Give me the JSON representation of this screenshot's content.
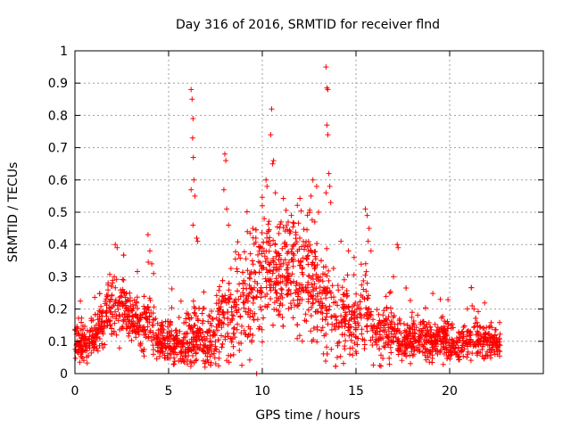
{
  "chart_data": {
    "type": "scatter",
    "title": "Day 316 of 2016, SRMTID for receiver flnd",
    "xlabel": "GPS time / hours",
    "ylabel": "SRMTID / TECUs",
    "xlim": [
      0,
      25
    ],
    "ylim": [
      0,
      1
    ],
    "xticks": [
      0,
      5,
      10,
      15,
      20
    ],
    "xtick_labels": [
      "0",
      "5",
      "10",
      "15",
      "20"
    ],
    "yticks": [
      0,
      0.1,
      0.2,
      0.3,
      0.4,
      0.5,
      0.6,
      0.7,
      0.8,
      0.9,
      1
    ],
    "ytick_labels": [
      "0",
      "0.1",
      "0.2",
      "0.3",
      "0.4",
      "0.5",
      "0.6",
      "0.7",
      "0.8",
      "0.9",
      "1"
    ],
    "grid": true,
    "marker": "+",
    "series_color": "#ff0000",
    "x_data_end": 22.7,
    "baseline_profile": [
      [
        0.0,
        0.11,
        0.03
      ],
      [
        0.5,
        0.09,
        0.03
      ],
      [
        1.0,
        0.11,
        0.03
      ],
      [
        1.5,
        0.16,
        0.04
      ],
      [
        2.0,
        0.2,
        0.05
      ],
      [
        2.5,
        0.21,
        0.05
      ],
      [
        3.0,
        0.18,
        0.04
      ],
      [
        3.5,
        0.15,
        0.04
      ],
      [
        4.0,
        0.16,
        0.05
      ],
      [
        4.5,
        0.1,
        0.03
      ],
      [
        5.0,
        0.1,
        0.03
      ],
      [
        5.5,
        0.09,
        0.03
      ],
      [
        6.0,
        0.1,
        0.04
      ],
      [
        6.5,
        0.12,
        0.05
      ],
      [
        7.0,
        0.09,
        0.04
      ],
      [
        7.5,
        0.12,
        0.05
      ],
      [
        8.0,
        0.17,
        0.07
      ],
      [
        8.5,
        0.18,
        0.08
      ],
      [
        9.0,
        0.2,
        0.08
      ],
      [
        9.5,
        0.27,
        0.09
      ],
      [
        10.0,
        0.31,
        0.1
      ],
      [
        10.5,
        0.33,
        0.08
      ],
      [
        11.0,
        0.3,
        0.09
      ],
      [
        11.5,
        0.33,
        0.08
      ],
      [
        12.0,
        0.3,
        0.09
      ],
      [
        12.5,
        0.3,
        0.1
      ],
      [
        13.0,
        0.24,
        0.07
      ],
      [
        13.5,
        0.24,
        0.08
      ],
      [
        14.0,
        0.18,
        0.06
      ],
      [
        14.5,
        0.17,
        0.05
      ],
      [
        15.0,
        0.16,
        0.05
      ],
      [
        15.5,
        0.2,
        0.07
      ],
      [
        16.0,
        0.11,
        0.04
      ],
      [
        16.5,
        0.13,
        0.05
      ],
      [
        17.0,
        0.12,
        0.04
      ],
      [
        17.5,
        0.1,
        0.03
      ],
      [
        18.0,
        0.11,
        0.03
      ],
      [
        18.5,
        0.11,
        0.03
      ],
      [
        19.0,
        0.1,
        0.03
      ],
      [
        19.5,
        0.11,
        0.03
      ],
      [
        20.0,
        0.1,
        0.03
      ],
      [
        20.5,
        0.09,
        0.03
      ],
      [
        21.0,
        0.1,
        0.03
      ],
      [
        21.5,
        0.11,
        0.03
      ],
      [
        22.0,
        0.1,
        0.03
      ],
      [
        22.7,
        0.09,
        0.02
      ]
    ],
    "highlights": [
      [
        13.4,
        0.95
      ],
      [
        13.45,
        0.885
      ],
      [
        13.5,
        0.88
      ],
      [
        13.45,
        0.77
      ],
      [
        13.5,
        0.74
      ],
      [
        13.55,
        0.62
      ],
      [
        13.6,
        0.58
      ],
      [
        13.4,
        0.56
      ],
      [
        13.65,
        0.53
      ],
      [
        6.2,
        0.88
      ],
      [
        6.25,
        0.85
      ],
      [
        6.3,
        0.79
      ],
      [
        6.28,
        0.73
      ],
      [
        6.32,
        0.67
      ],
      [
        6.35,
        0.6
      ],
      [
        6.2,
        0.57
      ],
      [
        6.4,
        0.55
      ],
      [
        6.3,
        0.46
      ],
      [
        6.5,
        0.42
      ],
      [
        6.55,
        0.41
      ],
      [
        10.5,
        0.82
      ],
      [
        10.45,
        0.74
      ],
      [
        10.6,
        0.66
      ],
      [
        10.55,
        0.65
      ],
      [
        10.7,
        0.56
      ],
      [
        10.2,
        0.6
      ],
      [
        10.25,
        0.58
      ],
      [
        10.0,
        0.52
      ],
      [
        10.1,
        0.48
      ],
      [
        8.0,
        0.68
      ],
      [
        8.05,
        0.66
      ],
      [
        7.95,
        0.57
      ],
      [
        8.1,
        0.51
      ],
      [
        8.2,
        0.46
      ],
      [
        12.7,
        0.6
      ],
      [
        12.9,
        0.58
      ],
      [
        12.6,
        0.55
      ],
      [
        13.0,
        0.5
      ],
      [
        12.8,
        0.47
      ],
      [
        11.8,
        0.43
      ],
      [
        12.0,
        0.42
      ],
      [
        15.5,
        0.51
      ],
      [
        15.6,
        0.49
      ],
      [
        15.7,
        0.45
      ],
      [
        15.65,
        0.41
      ],
      [
        15.8,
        0.38
      ],
      [
        17.2,
        0.4
      ],
      [
        17.25,
        0.39
      ],
      [
        17.0,
        0.3
      ],
      [
        3.9,
        0.43
      ],
      [
        4.0,
        0.38
      ],
      [
        4.1,
        0.34
      ],
      [
        4.2,
        0.31
      ],
      [
        2.15,
        0.4
      ],
      [
        2.25,
        0.39
      ],
      [
        2.1,
        0.3
      ],
      [
        2.6,
        0.29
      ],
      [
        9.2,
        0.44
      ],
      [
        9.5,
        0.45
      ],
      [
        11.0,
        0.47
      ],
      [
        11.5,
        0.44
      ],
      [
        14.2,
        0.41
      ],
      [
        14.6,
        0.38
      ],
      [
        14.9,
        0.36
      ],
      [
        19.5,
        0.23
      ],
      [
        21.2,
        0.21
      ],
      [
        21.3,
        0.2
      ],
      [
        18.0,
        0.19
      ],
      [
        16.8,
        0.25
      ],
      [
        9.7,
        0.0
      ],
      [
        14.0,
        0.05
      ],
      [
        5.3,
        0.03
      ],
      [
        6.0,
        0.03
      ]
    ]
  }
}
